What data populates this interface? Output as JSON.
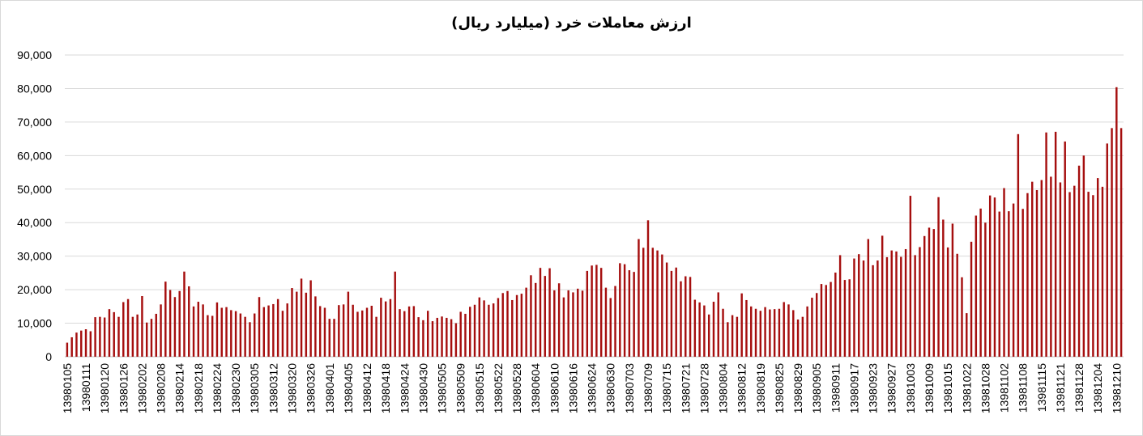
{
  "chart_data": {
    "type": "bar",
    "title": "ارزش معاملات خرد (میلیارد ریال)",
    "xlabel": "",
    "ylabel": "",
    "ylim": [
      0,
      90000
    ],
    "yticks": [
      "0",
      "10,000",
      "20,000",
      "30,000",
      "40,000",
      "50,000",
      "60,000",
      "70,000",
      "80,000",
      "90,000"
    ],
    "x_tick_labels": [
      "13980105",
      "13980111",
      "13980120",
      "13980126",
      "13980202",
      "13980208",
      "13980214",
      "13980218",
      "13980224",
      "13980230",
      "13980305",
      "13980312",
      "13980320",
      "13980326",
      "13980401",
      "13980405",
      "13980412",
      "13980418",
      "13980424",
      "13980430",
      "13980505",
      "13980509",
      "13980515",
      "13980522",
      "13980528",
      "13980604",
      "13980610",
      "13980616",
      "13980624",
      "13980630",
      "13980703",
      "13980709",
      "13980715",
      "13980721",
      "13980728",
      "13980804",
      "13980812",
      "13980819",
      "13980825",
      "13980829",
      "13980905",
      "13980911",
      "13980917",
      "13980923",
      "13980927",
      "13981003",
      "13981009",
      "13981015",
      "13981022",
      "13981028",
      "13981102",
      "13981108",
      "13981115",
      "13981121",
      "13981128",
      "13981204",
      "13981210"
    ],
    "grid": true,
    "bar_color": "#a50e0e",
    "values": [
      4200,
      5800,
      7200,
      7800,
      8200,
      7600,
      11800,
      11900,
      11700,
      14200,
      13300,
      11900,
      16300,
      17200,
      11900,
      12600,
      18100,
      10200,
      11300,
      12800,
      15600,
      22400,
      19900,
      17800,
      19600,
      25400,
      21000,
      15000,
      16400,
      15600,
      12400,
      12200,
      16200,
      14600,
      14800,
      13900,
      13600,
      12900,
      11900,
      10300,
      12900,
      17800,
      14800,
      15300,
      15700,
      17200,
      13700,
      15900,
      20500,
      19400,
      23300,
      19100,
      22800,
      18000,
      15100,
      14600,
      11300,
      11300,
      15400,
      15600,
      19400,
      15500,
      13400,
      13800,
      14600,
      15200,
      11900,
      17600,
      16500,
      17200,
      25400,
      14200,
      13600,
      15000,
      15100,
      11800,
      10900,
      13700,
      10600,
      11600,
      12000,
      11600,
      11200,
      10000,
      13400,
      12800,
      14900,
      15500,
      17700,
      16800,
      15500,
      15900,
      17500,
      19000,
      19600,
      16900,
      18400,
      18800,
      20600,
      24300,
      22000,
      26500,
      24100,
      26400,
      19800,
      21900,
      17700,
      19800,
      19200,
      20300,
      19700,
      25600,
      27200,
      27400,
      26500,
      20600,
      17500,
      21100,
      27900,
      27600,
      25800,
      25300,
      35100,
      32500,
      40700,
      32500,
      31700,
      30500,
      28100,
      25600,
      26600,
      22500,
      24000,
      23800,
      17000,
      16200,
      15300,
      12600,
      16400,
      19200,
      14300,
      10300,
      12400,
      11900,
      18900,
      16900,
      15000,
      14300,
      13700,
      14800,
      14100,
      14200,
      14300,
      16300,
      15600,
      13900,
      11100,
      11900,
      15000,
      17600,
      19000,
      21700,
      21400,
      22300,
      25100,
      30300,
      22900,
      23100,
      29300,
      30600,
      28700,
      35100,
      27300,
      28700,
      36100,
      29700,
      31700,
      31400,
      29800,
      32100,
      48000,
      30300,
      32700,
      36000,
      38500,
      38100,
      47600,
      40900,
      32600,
      39700,
      30700,
      23700,
      13000,
      34300,
      42100,
      44200,
      40000,
      48100,
      47500,
      43300,
      50300,
      43400,
      45700,
      66400,
      44100,
      48800,
      52200,
      49700,
      52700,
      66900,
      53700,
      67100,
      52000,
      64200,
      49100,
      51000,
      57000,
      60000,
      49200,
      48200,
      53300,
      50700,
      63600,
      68200,
      80400,
      68200
    ]
  }
}
